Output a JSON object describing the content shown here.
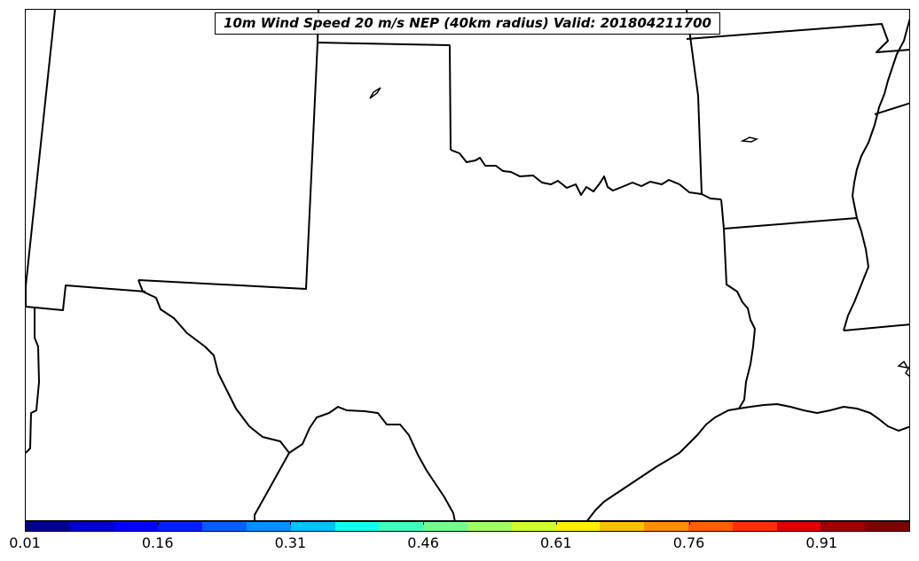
{
  "title": "10m Wind Speed 20 m/s NEP (40km radius) Valid: 201804211700",
  "colorbar": {
    "colors": [
      "#00008f",
      "#0000cd",
      "#0000ff",
      "#0020ff",
      "#0060ff",
      "#0090ff",
      "#00c0ff",
      "#10ffef",
      "#40ffbf",
      "#70ff8f",
      "#a0ff5f",
      "#d0ff2f",
      "#ffef00",
      "#ffbf00",
      "#ff8f00",
      "#ff5f00",
      "#ff2f00",
      "#df0000",
      "#9f0000",
      "#7f0000"
    ],
    "ticks": [
      {
        "label": "0.01",
        "value": 0.01
      },
      {
        "label": "0.16",
        "value": 0.16
      },
      {
        "label": "0.31",
        "value": 0.31
      },
      {
        "label": "0.46",
        "value": 0.46
      },
      {
        "label": "0.61",
        "value": 0.61
      },
      {
        "label": "0.76",
        "value": 0.76
      },
      {
        "label": "0.91",
        "value": 0.91
      }
    ],
    "min": 0.01,
    "max": 1.01
  },
  "map": {
    "line_color": "#000000",
    "fill_color": "#ffffff"
  }
}
